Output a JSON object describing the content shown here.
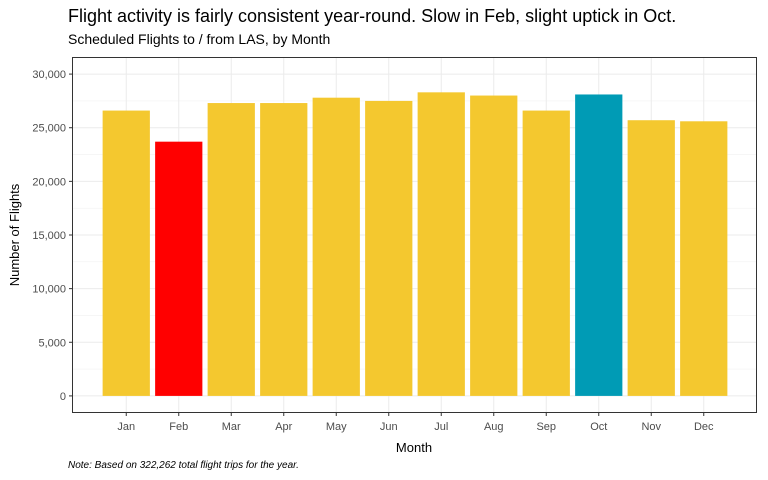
{
  "chart_data": {
    "type": "bar",
    "title": "Flight activity is fairly consistent year-round. Slow in Feb, slight uptick in Oct.",
    "subtitle": "Scheduled Flights to / from LAS, by Month",
    "xlabel": "Month",
    "ylabel": "Number of Flights",
    "note": "Note: Based on 322,262 total flight trips for the year.",
    "categories": [
      "Jan",
      "Feb",
      "Mar",
      "Apr",
      "May",
      "Jun",
      "Jul",
      "Aug",
      "Sep",
      "Oct",
      "Nov",
      "Dec"
    ],
    "values": [
      26600,
      23700,
      27300,
      27300,
      27800,
      27500,
      28300,
      28000,
      26600,
      28100,
      25700,
      25600
    ],
    "colors": [
      "#F4C82F",
      "#FF0000",
      "#F4C82F",
      "#F4C82F",
      "#F4C82F",
      "#F4C82F",
      "#F4C82F",
      "#F4C82F",
      "#F4C82F",
      "#009BB5",
      "#F4C82F",
      "#F4C82F"
    ],
    "yticks": [
      0,
      5000,
      10000,
      15000,
      20000,
      25000,
      30000
    ],
    "ytick_labels": [
      "0",
      "5,000",
      "10,000",
      "15,000",
      "20,000",
      "25,000",
      "30,000"
    ],
    "ylim": [
      -1500,
      31500
    ],
    "grid": true,
    "legend": "none"
  }
}
